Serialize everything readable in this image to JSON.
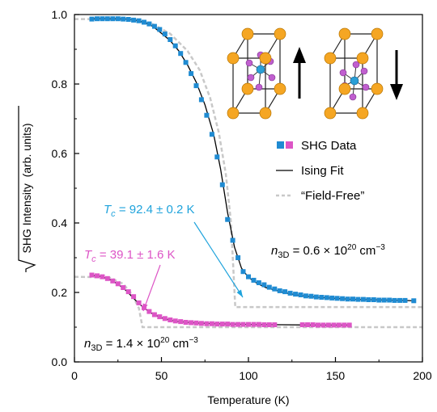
{
  "chart_data": {
    "type": "scatter",
    "xlabel": "Temperature (K)",
    "ylabel": "SHG Intensity  (arb. units)",
    "xlim": [
      0,
      200
    ],
    "ylim": [
      0,
      1.0
    ],
    "xticks": [
      "0",
      "50",
      "100",
      "150",
      "200"
    ],
    "yticks": [
      "0.0",
      "0.2",
      "0.4",
      "0.6",
      "0.8",
      "1.0"
    ],
    "grid": false,
    "legend_position": "right",
    "legend": {
      "data": "SHG Data",
      "fit": "Ising Fit",
      "field_free": "“Field-Free”"
    },
    "colors": {
      "series_a": "#1f8bd2",
      "series_b": "#dd55c6",
      "fit": "#000000",
      "field_free": "#c8c8c8",
      "arrow_a": "#1fa3dc",
      "arrow_b": "#dd55c6",
      "atom_gold": "#f5a623",
      "atom_pink": "#c05fcf",
      "atom_blue": "#2a9fd6"
    },
    "annotations": {
      "tc_a": {
        "label": "T",
        "sub": "c",
        "text": " = 92.4 ± 0.2 K"
      },
      "tc_b": {
        "label": "T",
        "sub": "c",
        "text": " = 39.1 ± 1.6 K"
      },
      "n_a": {
        "label": "n",
        "sub": "3D",
        "text": " = 0.6 × 10",
        "exp": "20",
        "unit": " cm",
        "unit_exp": "−3"
      },
      "n_b": {
        "label": "n",
        "sub": "3D",
        "text": " = 1.4 × 10",
        "exp": "20",
        "unit": " cm",
        "unit_exp": "−3"
      }
    },
    "series": [
      {
        "color": "#1f8bd2",
        "x": [
          10,
          13,
          16,
          19,
          22,
          25,
          28,
          31,
          34,
          37,
          40,
          43,
          46,
          49,
          52,
          55,
          58,
          61,
          64,
          67,
          70,
          73,
          76,
          79,
          82,
          85,
          88,
          91,
          94,
          97,
          100,
          103,
          106,
          109,
          112,
          115,
          118,
          121,
          124,
          127,
          130,
          133,
          136,
          139,
          142,
          145,
          148,
          151,
          154,
          157,
          160,
          163,
          166,
          169,
          172,
          175,
          178,
          181,
          184,
          187,
          190,
          195
        ],
        "y": [
          0.987,
          0.988,
          0.988,
          0.988,
          0.988,
          0.988,
          0.987,
          0.986,
          0.984,
          0.982,
          0.978,
          0.973,
          0.966,
          0.957,
          0.944,
          0.928,
          0.91,
          0.888,
          0.862,
          0.83,
          0.795,
          0.755,
          0.71,
          0.655,
          0.59,
          0.51,
          0.41,
          0.35,
          0.3,
          0.26,
          0.245,
          0.235,
          0.228,
          0.222,
          0.215,
          0.21,
          0.205,
          0.202,
          0.198,
          0.195,
          0.193,
          0.19,
          0.189,
          0.187,
          0.186,
          0.185,
          0.184,
          0.183,
          0.182,
          0.181,
          0.181,
          0.18,
          0.18,
          0.179,
          0.179,
          0.178,
          0.178,
          0.178,
          0.177,
          0.177,
          0.177,
          0.176
        ]
      },
      {
        "color": "#dd55c6",
        "x": [
          10,
          13,
          16,
          19,
          22,
          25,
          28,
          31,
          34,
          37,
          40,
          43,
          46,
          49,
          52,
          55,
          58,
          61,
          64,
          67,
          70,
          73,
          76,
          79,
          82,
          85,
          88,
          91,
          94,
          97,
          100,
          103,
          106,
          109,
          112,
          115,
          131,
          134,
          137,
          140,
          143,
          146,
          149,
          152,
          155,
          158
        ],
        "y": [
          0.25,
          0.248,
          0.245,
          0.24,
          0.233,
          0.225,
          0.214,
          0.202,
          0.188,
          0.17,
          0.156,
          0.145,
          0.136,
          0.13,
          0.125,
          0.121,
          0.118,
          0.116,
          0.114,
          0.113,
          0.112,
          0.111,
          0.11,
          0.11,
          0.109,
          0.109,
          0.109,
          0.108,
          0.108,
          0.108,
          0.108,
          0.108,
          0.108,
          0.107,
          0.107,
          0.107,
          0.107,
          0.107,
          0.107,
          0.106,
          0.106,
          0.106,
          0.106,
          0.106,
          0.106,
          0.106
        ]
      }
    ],
    "fit_curves": [
      {
        "x": [
          10,
          15,
          20,
          25,
          30,
          35,
          40,
          45,
          50,
          55,
          60,
          65,
          70,
          75,
          80,
          84,
          88,
          92,
          96,
          100,
          105,
          110,
          120,
          130,
          140,
          150,
          160,
          170,
          180,
          190,
          195
        ],
        "y": [
          0.988,
          0.988,
          0.988,
          0.988,
          0.987,
          0.984,
          0.978,
          0.966,
          0.946,
          0.925,
          0.895,
          0.855,
          0.805,
          0.74,
          0.655,
          0.555,
          0.43,
          0.33,
          0.27,
          0.243,
          0.226,
          0.214,
          0.2,
          0.191,
          0.186,
          0.183,
          0.18,
          0.179,
          0.178,
          0.177,
          0.176
        ]
      },
      {
        "x": [
          10,
          15,
          20,
          25,
          30,
          35,
          40,
          45,
          50,
          55,
          60,
          70,
          80,
          90,
          100,
          120,
          140,
          158
        ],
        "y": [
          0.25,
          0.246,
          0.238,
          0.224,
          0.204,
          0.178,
          0.155,
          0.138,
          0.127,
          0.12,
          0.116,
          0.112,
          0.11,
          0.109,
          0.108,
          0.107,
          0.106,
          0.106
        ]
      }
    ],
    "field_free_curves": [
      {
        "x": [
          0,
          15,
          30,
          45,
          55,
          65,
          72,
          78,
          83,
          87,
          90,
          92.4,
          200
        ],
        "y": [
          0.987,
          0.987,
          0.985,
          0.972,
          0.945,
          0.895,
          0.84,
          0.76,
          0.66,
          0.54,
          0.4,
          0.158,
          0.158
        ]
      },
      {
        "x": [
          0,
          20,
          28,
          33,
          37,
          39.1,
          160,
          200
        ],
        "y": [
          0.245,
          0.243,
          0.225,
          0.195,
          0.155,
          0.1,
          0.1,
          0.1
        ]
      }
    ]
  }
}
